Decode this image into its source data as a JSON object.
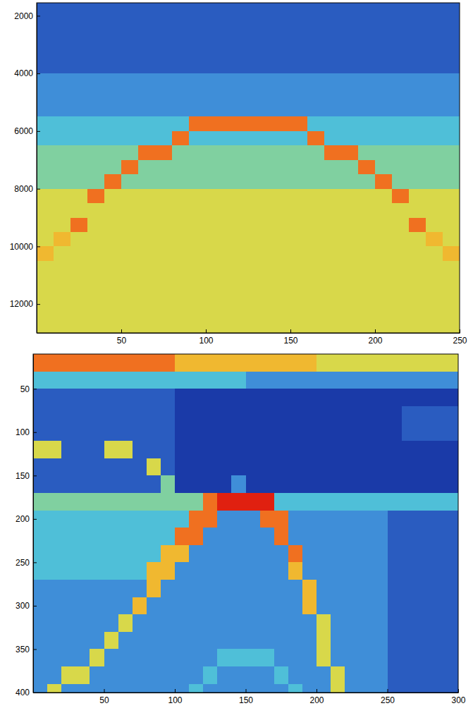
{
  "chart_data": [
    {
      "type": "heatmap",
      "x": [
        5,
        15,
        25,
        35,
        45,
        55,
        65,
        75,
        85,
        95,
        105,
        115,
        125,
        135,
        145,
        155,
        165,
        175,
        185,
        195,
        205,
        215,
        225,
        235,
        245
      ],
      "y": [
        1750,
        2250,
        2750,
        3250,
        3750,
        4250,
        4750,
        5250,
        5750,
        6250,
        6750,
        7250,
        7750,
        8250,
        8750,
        9250,
        9750,
        10250,
        10750,
        11250,
        11750,
        12250,
        12750
      ],
      "z": [
        [
          2,
          2,
          2,
          2,
          2,
          2,
          2,
          2,
          2,
          2,
          2,
          2,
          2,
          2,
          2,
          2,
          2,
          2,
          2,
          2,
          2,
          2,
          2,
          2,
          2
        ],
        [
          2,
          2,
          2,
          2,
          2,
          2,
          2,
          2,
          2,
          2,
          2,
          2,
          2,
          2,
          2,
          2,
          2,
          2,
          2,
          2,
          2,
          2,
          2,
          2,
          2
        ],
        [
          2,
          2,
          2,
          2,
          2,
          2,
          2,
          2,
          2,
          2,
          2,
          2,
          2,
          2,
          2,
          2,
          2,
          2,
          2,
          2,
          2,
          2,
          2,
          2,
          2
        ],
        [
          2,
          2,
          2,
          2,
          2,
          2,
          2,
          2,
          2,
          2,
          2,
          2,
          2,
          2,
          2,
          2,
          2,
          2,
          2,
          2,
          2,
          2,
          2,
          2,
          2
        ],
        [
          2,
          2,
          2,
          2,
          2,
          2,
          2,
          2,
          2,
          2,
          2,
          2,
          2,
          2,
          2,
          2,
          2,
          2,
          2,
          2,
          2,
          2,
          2,
          2,
          2
        ],
        [
          3,
          3,
          3,
          3,
          3,
          3,
          3,
          3,
          3,
          3,
          3,
          3,
          3,
          3,
          3,
          3,
          3,
          3,
          3,
          3,
          3,
          3,
          3,
          3,
          3
        ],
        [
          3,
          3,
          3,
          3,
          3,
          3,
          3,
          3,
          3,
          3,
          3,
          3,
          3,
          3,
          3,
          3,
          3,
          3,
          3,
          3,
          3,
          3,
          3,
          3,
          3
        ],
        [
          3,
          3,
          3,
          3,
          3,
          3,
          3,
          3,
          3,
          3,
          3,
          3,
          3,
          3,
          3,
          3,
          3,
          3,
          3,
          3,
          3,
          3,
          3,
          3,
          3
        ],
        [
          4,
          4,
          4,
          4,
          4,
          4,
          4,
          4,
          4,
          8,
          8,
          8,
          8,
          8,
          8,
          8,
          4,
          4,
          4,
          4,
          4,
          4,
          4,
          4,
          4
        ],
        [
          4,
          4,
          4,
          4,
          4,
          4,
          4,
          4,
          8,
          4,
          4,
          4,
          4,
          4,
          4,
          4,
          8,
          4,
          4,
          4,
          4,
          4,
          4,
          4,
          4
        ],
        [
          5,
          5,
          5,
          5,
          5,
          5,
          8,
          8,
          5,
          5,
          5,
          5,
          5,
          5,
          5,
          5,
          5,
          8,
          8,
          5,
          5,
          5,
          5,
          5,
          5
        ],
        [
          5,
          5,
          5,
          5,
          5,
          8,
          5,
          5,
          5,
          5,
          5,
          5,
          5,
          5,
          5,
          5,
          5,
          5,
          5,
          8,
          5,
          5,
          5,
          5,
          5
        ],
        [
          5,
          5,
          5,
          5,
          8,
          5,
          5,
          5,
          5,
          5,
          5,
          5,
          5,
          5,
          5,
          5,
          5,
          5,
          5,
          5,
          8,
          5,
          5,
          5,
          5
        ],
        [
          6,
          6,
          6,
          8,
          6,
          6,
          6,
          6,
          6,
          6,
          6,
          6,
          6,
          6,
          6,
          6,
          6,
          6,
          6,
          6,
          6,
          8,
          6,
          6,
          6
        ],
        [
          6,
          6,
          6,
          6,
          6,
          6,
          6,
          6,
          6,
          6,
          6,
          6,
          6,
          6,
          6,
          6,
          6,
          6,
          6,
          6,
          6,
          6,
          6,
          6,
          6
        ],
        [
          6,
          6,
          8,
          6,
          6,
          6,
          6,
          6,
          6,
          6,
          6,
          6,
          6,
          6,
          6,
          6,
          6,
          6,
          6,
          6,
          6,
          6,
          8,
          6,
          6
        ],
        [
          6,
          7,
          6,
          6,
          6,
          6,
          6,
          6,
          6,
          6,
          6,
          6,
          6,
          6,
          6,
          6,
          6,
          6,
          6,
          6,
          6,
          6,
          6,
          7,
          6
        ],
        [
          7,
          6,
          6,
          6,
          6,
          6,
          6,
          6,
          6,
          6,
          6,
          6,
          6,
          6,
          6,
          6,
          6,
          6,
          6,
          6,
          6,
          6,
          6,
          6,
          7
        ],
        [
          6,
          6,
          6,
          6,
          6,
          6,
          6,
          6,
          6,
          6,
          6,
          6,
          6,
          6,
          6,
          6,
          6,
          6,
          6,
          6,
          6,
          6,
          6,
          6,
          6
        ],
        [
          6,
          6,
          6,
          6,
          6,
          6,
          6,
          6,
          6,
          6,
          6,
          6,
          6,
          6,
          6,
          6,
          6,
          6,
          6,
          6,
          6,
          6,
          6,
          6,
          6
        ],
        [
          6,
          6,
          6,
          6,
          6,
          6,
          6,
          6,
          6,
          6,
          6,
          6,
          6,
          6,
          6,
          6,
          6,
          6,
          6,
          6,
          6,
          6,
          6,
          6,
          6
        ],
        [
          6,
          6,
          6,
          6,
          6,
          6,
          6,
          6,
          6,
          6,
          6,
          6,
          6,
          6,
          6,
          6,
          6,
          6,
          6,
          6,
          6,
          6,
          6,
          6,
          6
        ],
        [
          6,
          6,
          6,
          6,
          6,
          6,
          6,
          6,
          6,
          6,
          6,
          6,
          6,
          6,
          6,
          6,
          6,
          6,
          6,
          6,
          6,
          6,
          6,
          6,
          6
        ]
      ],
      "zlim": [
        0,
        10
      ],
      "xlim": [
        0,
        250
      ],
      "ylim": [
        1550,
        13000
      ],
      "xticks": [
        50,
        100,
        150,
        200,
        250
      ],
      "yticks": [
        2000,
        4000,
        6000,
        8000,
        10000,
        12000
      ]
    },
    {
      "type": "heatmap",
      "x": [
        5,
        15,
        25,
        35,
        45,
        55,
        65,
        75,
        85,
        95,
        105,
        115,
        125,
        135,
        145,
        155,
        165,
        175,
        185,
        195,
        205,
        215,
        225,
        235,
        245,
        255,
        265,
        275,
        285,
        295
      ],
      "y": [
        20,
        40,
        60,
        80,
        100,
        120,
        140,
        160,
        180,
        200,
        220,
        240,
        260,
        280,
        300,
        320,
        340,
        360,
        380,
        400
      ],
      "z": [
        [
          8,
          8,
          8,
          8,
          8,
          8,
          8,
          8,
          8,
          8,
          7,
          7,
          7,
          7,
          7,
          7,
          7,
          7,
          7,
          7,
          6,
          6,
          6,
          6,
          6,
          6,
          6,
          6,
          6,
          6
        ],
        [
          4,
          4,
          4,
          4,
          4,
          4,
          4,
          4,
          4,
          4,
          4,
          4,
          4,
          4,
          4,
          3,
          3,
          3,
          3,
          3,
          3,
          3,
          3,
          3,
          3,
          3,
          3,
          3,
          3,
          3
        ],
        [
          2,
          2,
          2,
          2,
          2,
          2,
          2,
          2,
          2,
          2,
          1,
          1,
          1,
          1,
          1,
          1,
          1,
          1,
          1,
          1,
          1,
          1,
          1,
          1,
          1,
          1,
          1,
          1,
          1,
          1
        ],
        [
          2,
          2,
          2,
          2,
          2,
          2,
          2,
          2,
          2,
          2,
          1,
          1,
          1,
          1,
          1,
          1,
          1,
          1,
          1,
          1,
          1,
          1,
          1,
          1,
          1,
          1,
          2,
          2,
          2,
          2
        ],
        [
          2,
          2,
          2,
          2,
          2,
          2,
          2,
          2,
          2,
          2,
          1,
          1,
          1,
          1,
          1,
          1,
          1,
          1,
          1,
          1,
          1,
          1,
          1,
          1,
          1,
          1,
          2,
          2,
          2,
          2
        ],
        [
          6,
          6,
          2,
          2,
          2,
          6,
          6,
          2,
          2,
          2,
          1,
          1,
          1,
          1,
          1,
          1,
          1,
          1,
          1,
          1,
          1,
          1,
          1,
          1,
          1,
          1,
          1,
          1,
          1,
          1
        ],
        [
          2,
          2,
          2,
          2,
          2,
          2,
          2,
          2,
          6,
          2,
          1,
          1,
          1,
          1,
          1,
          1,
          1,
          1,
          1,
          1,
          1,
          1,
          1,
          1,
          1,
          1,
          1,
          1,
          1,
          1
        ],
        [
          2,
          2,
          2,
          2,
          2,
          2,
          2,
          2,
          2,
          5,
          1,
          1,
          1,
          1,
          3,
          1,
          1,
          1,
          1,
          1,
          1,
          1,
          1,
          1,
          1,
          1,
          1,
          1,
          1,
          1
        ],
        [
          5,
          5,
          5,
          5,
          5,
          5,
          5,
          5,
          5,
          5,
          5,
          5,
          8,
          9,
          9,
          9,
          9,
          4,
          4,
          4,
          4,
          4,
          4,
          4,
          4,
          4,
          4,
          4,
          4,
          4
        ],
        [
          4,
          4,
          4,
          4,
          4,
          4,
          4,
          4,
          4,
          4,
          4,
          8,
          8,
          3,
          3,
          3,
          8,
          8,
          3,
          3,
          3,
          3,
          3,
          3,
          3,
          2,
          2,
          2,
          2,
          2
        ],
        [
          4,
          4,
          4,
          4,
          4,
          4,
          4,
          4,
          4,
          4,
          8,
          8,
          3,
          3,
          3,
          3,
          3,
          8,
          3,
          3,
          3,
          3,
          3,
          3,
          3,
          2,
          2,
          2,
          2,
          2
        ],
        [
          4,
          4,
          4,
          4,
          4,
          4,
          4,
          4,
          4,
          7,
          7,
          3,
          3,
          3,
          3,
          3,
          3,
          3,
          8,
          3,
          3,
          3,
          3,
          3,
          3,
          2,
          2,
          2,
          2,
          2
        ],
        [
          4,
          4,
          4,
          4,
          4,
          4,
          4,
          4,
          7,
          7,
          3,
          3,
          3,
          3,
          3,
          3,
          3,
          3,
          7,
          3,
          3,
          3,
          3,
          3,
          3,
          2,
          2,
          2,
          2,
          2
        ],
        [
          3,
          3,
          3,
          3,
          3,
          3,
          3,
          3,
          7,
          3,
          3,
          3,
          3,
          3,
          3,
          3,
          3,
          3,
          3,
          7,
          3,
          3,
          3,
          3,
          3,
          2,
          2,
          2,
          2,
          2
        ],
        [
          3,
          3,
          3,
          3,
          3,
          3,
          3,
          7,
          3,
          3,
          3,
          3,
          3,
          3,
          3,
          3,
          3,
          3,
          3,
          7,
          3,
          3,
          3,
          3,
          3,
          2,
          2,
          2,
          2,
          2
        ],
        [
          3,
          3,
          3,
          3,
          3,
          3,
          6,
          3,
          3,
          3,
          3,
          3,
          3,
          3,
          3,
          3,
          3,
          3,
          3,
          3,
          6,
          3,
          3,
          3,
          3,
          2,
          2,
          2,
          2,
          2
        ],
        [
          3,
          3,
          3,
          3,
          3,
          6,
          3,
          3,
          3,
          3,
          3,
          3,
          3,
          3,
          3,
          3,
          3,
          3,
          3,
          3,
          6,
          3,
          3,
          3,
          3,
          2,
          2,
          2,
          2,
          2
        ],
        [
          3,
          3,
          3,
          3,
          6,
          3,
          3,
          3,
          3,
          3,
          3,
          3,
          3,
          4,
          4,
          4,
          4,
          3,
          3,
          3,
          6,
          3,
          3,
          3,
          3,
          2,
          2,
          2,
          2,
          2
        ],
        [
          3,
          3,
          6,
          6,
          3,
          3,
          3,
          3,
          3,
          3,
          3,
          3,
          4,
          3,
          3,
          3,
          3,
          4,
          3,
          3,
          3,
          6,
          3,
          3,
          3,
          2,
          2,
          2,
          2,
          2
        ],
        [
          3,
          6,
          3,
          3,
          3,
          3,
          3,
          3,
          3,
          3,
          3,
          4,
          3,
          3,
          3,
          3,
          3,
          3,
          4,
          3,
          3,
          6,
          3,
          3,
          3,
          2,
          2,
          2,
          2,
          2
        ]
      ],
      "zlim": [
        0,
        10
      ],
      "xlim": [
        0,
        300
      ],
      "ylim": [
        10,
        400
      ],
      "xticks": [
        50,
        100,
        150,
        200,
        250,
        300
      ],
      "yticks": [
        50,
        100,
        150,
        200,
        250,
        300,
        350,
        400
      ]
    }
  ]
}
